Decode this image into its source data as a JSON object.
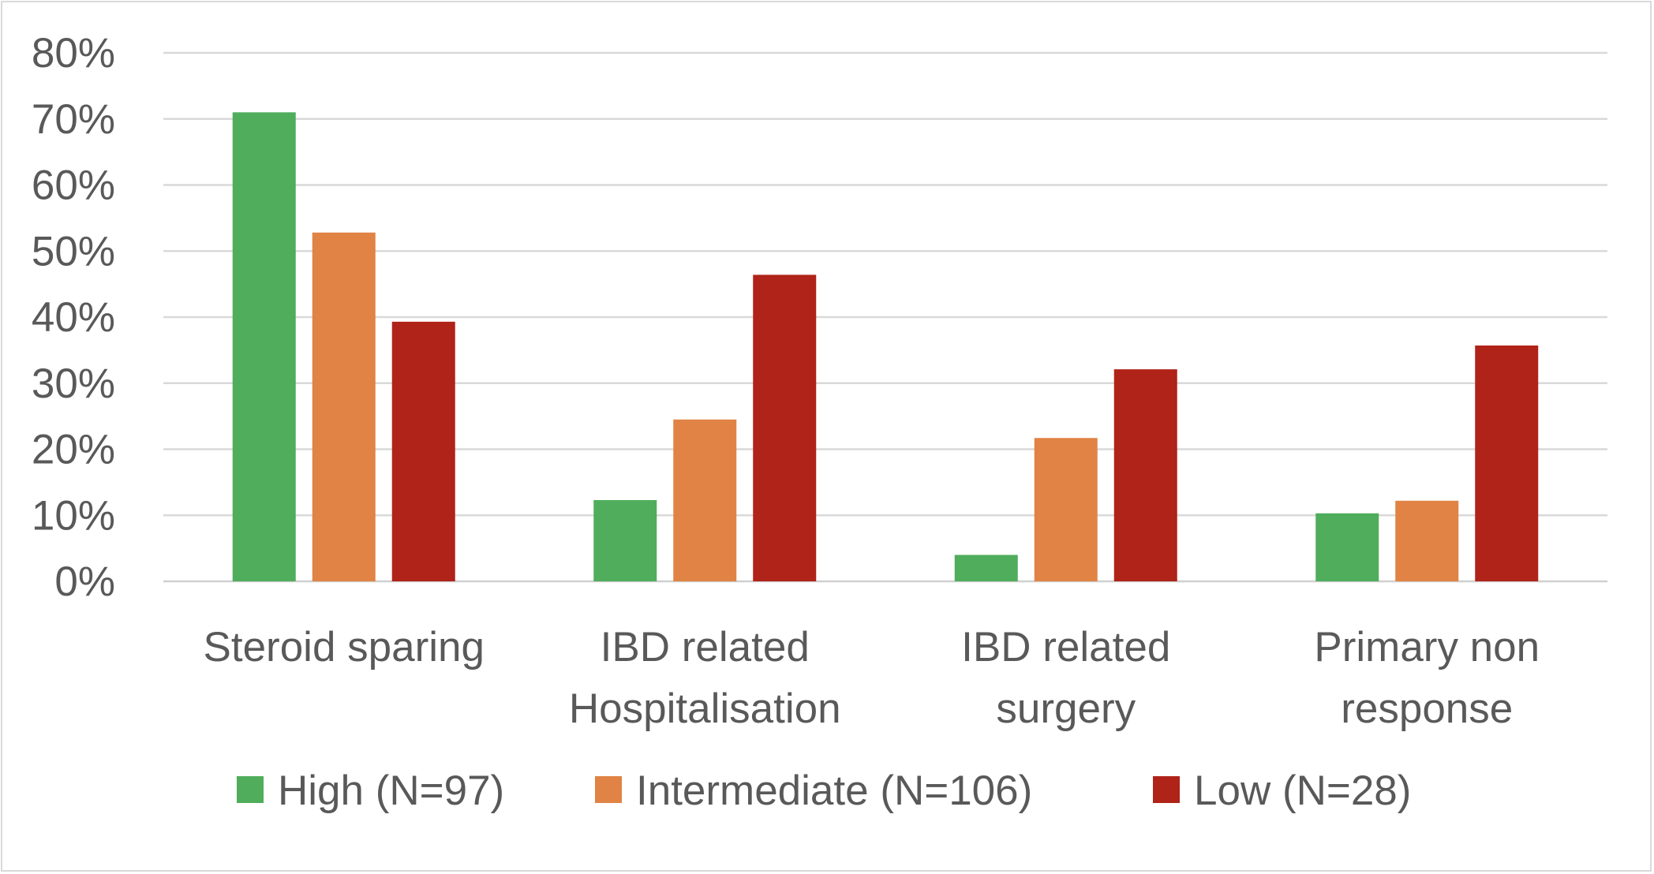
{
  "chart_data": {
    "type": "bar",
    "title": "",
    "xlabel": "",
    "ylabel": "",
    "categories": [
      [
        "Steroid sparing"
      ],
      [
        "IBD related",
        "Hospitalisation"
      ],
      [
        "IBD related",
        "surgery"
      ],
      [
        "Primary non",
        "response"
      ]
    ],
    "series": [
      {
        "name": "High (N=97)",
        "color": "#4fad5b",
        "values": [
          71,
          12.3,
          4,
          10.3
        ]
      },
      {
        "name": "Intermediate (N=106)",
        "color": "#e08344",
        "values": [
          52.8,
          24.5,
          21.7,
          12.2
        ]
      },
      {
        "name": "Low (N=28)",
        "color": "#af2318",
        "values": [
          39.3,
          46.4,
          32.1,
          35.7
        ]
      }
    ],
    "ylim": [
      0,
      80
    ],
    "yticks": [
      "0%",
      "10%",
      "20%",
      "30%",
      "40%",
      "50%",
      "60%",
      "70%",
      "80%"
    ],
    "grid": true,
    "legend_position": "bottom"
  }
}
